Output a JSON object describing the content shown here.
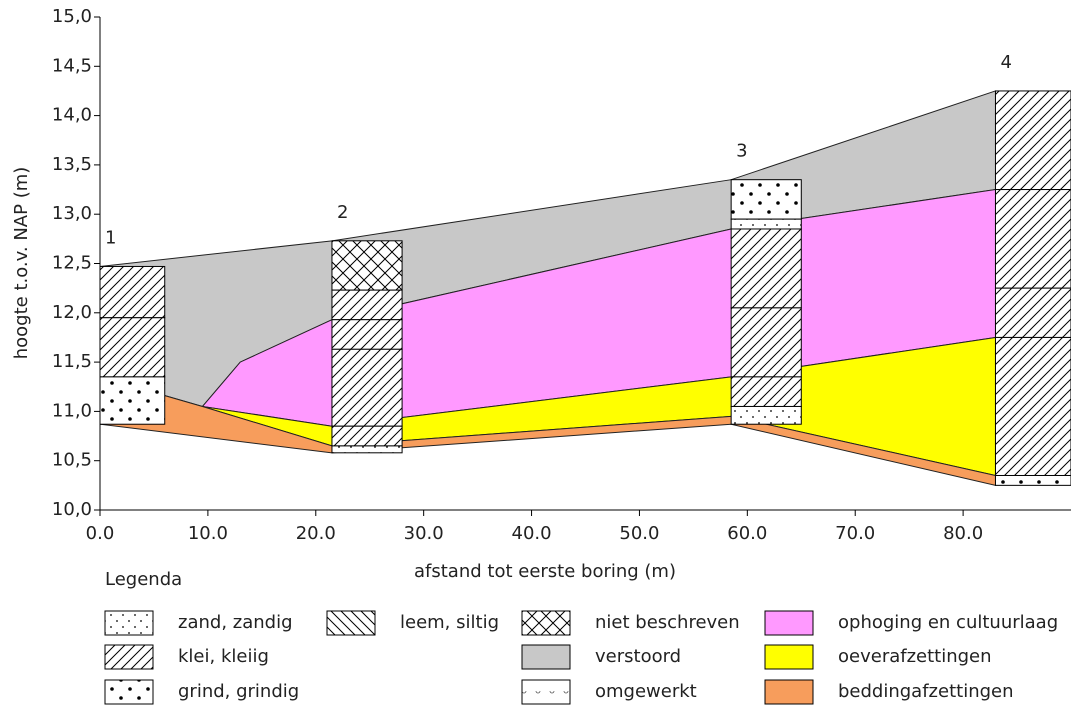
{
  "chart_data": {
    "type": "cross-section",
    "xlabel": "afstand tot eerste boring (m)",
    "ylabel": "hoogte t.o.v. NAP (m)",
    "xlim": [
      0,
      90
    ],
    "ylim": [
      10,
      15
    ],
    "xticks": [
      {
        "value": 0,
        "label": "0.0"
      },
      {
        "value": 10,
        "label": "10.0"
      },
      {
        "value": 20,
        "label": "20.0"
      },
      {
        "value": 30,
        "label": "30.0"
      },
      {
        "value": 40,
        "label": "40.0"
      },
      {
        "value": 50,
        "label": "50.0"
      },
      {
        "value": 60,
        "label": "60.0"
      },
      {
        "value": 70,
        "label": "70.0"
      },
      {
        "value": 80,
        "label": "80.0"
      }
    ],
    "yticks": [
      {
        "value": 10,
        "label": "10,0"
      },
      {
        "value": 10.5,
        "label": "10,5"
      },
      {
        "value": 11,
        "label": "11,0"
      },
      {
        "value": 11.5,
        "label": "11,5"
      },
      {
        "value": 12,
        "label": "12,0"
      },
      {
        "value": 12.5,
        "label": "12,5"
      },
      {
        "value": 13,
        "label": "13,0"
      },
      {
        "value": 13.5,
        "label": "13,5"
      },
      {
        "value": 14,
        "label": "14,0"
      },
      {
        "value": 14.5,
        "label": "14,5"
      },
      {
        "value": 15,
        "label": "15,0"
      }
    ],
    "legend_title": "Legenda",
    "lithology": [
      {
        "name": "zand, zandig"
      },
      {
        "name": "klei, kleiig"
      },
      {
        "name": "grind, grindig"
      },
      {
        "name": "leem, siltig"
      },
      {
        "name": "niet beschreven"
      },
      {
        "name": "omgewerkt"
      }
    ],
    "layers": [
      {
        "name": "verstoord",
        "color": "#c8c8c8",
        "x": [
          0,
          21.5,
          58.5,
          83,
          83,
          58.5,
          21.5,
          13,
          9.5,
          0
        ],
        "y": [
          12.47,
          12.73,
          13.35,
          14.25,
          13.25,
          12.85,
          11.93,
          11.5,
          11.05,
          11.35
        ]
      },
      {
        "name": "ophoging en cultuurlaag",
        "color": "#ff99ff",
        "x": [
          9.5,
          13,
          21.5,
          58.5,
          83,
          83,
          58.5,
          21.5
        ],
        "y": [
          11.05,
          11.5,
          11.93,
          12.85,
          13.25,
          11.75,
          11.35,
          10.85
        ]
      },
      {
        "name": "oeverafzettingen",
        "color": "#ffff00",
        "x": [
          9.5,
          21.5,
          58.5,
          83,
          83,
          58.5,
          21.5
        ],
        "y": [
          11.05,
          10.85,
          11.35,
          11.75,
          10.35,
          10.95,
          10.65
        ]
      },
      {
        "name": "beddingafzettingen",
        "color": "#f79d5c",
        "x": [
          0,
          9.5,
          21.5,
          58.5,
          83,
          83,
          58.5,
          21.5,
          0
        ],
        "y": [
          11.35,
          11.05,
          10.65,
          10.95,
          10.35,
          10.25,
          10.87,
          10.58,
          10.87
        ]
      }
    ],
    "borings": [
      {
        "name": "1",
        "x": [
          0,
          6
        ],
        "segments": [
          [
            12.47,
            11.95,
            1
          ],
          [
            11.95,
            11.35,
            1
          ],
          [
            11.35,
            10.87,
            2
          ]
        ]
      },
      {
        "name": "2",
        "x": [
          21.5,
          28
        ],
        "segments": [
          [
            12.73,
            12.23,
            4
          ],
          [
            12.23,
            11.93,
            1
          ],
          [
            11.93,
            11.63,
            1
          ],
          [
            11.63,
            10.85,
            1
          ],
          [
            10.85,
            10.65,
            1
          ],
          [
            10.65,
            10.58,
            0
          ]
        ]
      },
      {
        "name": "3",
        "x": [
          58.5,
          65
        ],
        "segments": [
          [
            13.35,
            12.95,
            2
          ],
          [
            12.95,
            12.85,
            0
          ],
          [
            12.85,
            12.05,
            1
          ],
          [
            12.05,
            11.35,
            1
          ],
          [
            11.35,
            11.05,
            1
          ],
          [
            11.05,
            10.87,
            0
          ]
        ]
      },
      {
        "name": "4",
        "x": [
          83,
          90
        ],
        "segments": [
          [
            14.25,
            13.25,
            1
          ],
          [
            13.25,
            12.25,
            1
          ],
          [
            12.25,
            11.75,
            1
          ],
          [
            11.75,
            10.35,
            1
          ],
          [
            10.35,
            10.25,
            2
          ]
        ]
      }
    ]
  }
}
